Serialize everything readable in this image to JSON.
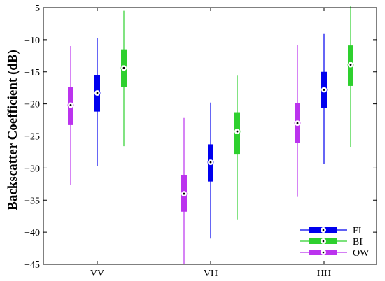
{
  "chart_data": {
    "type": "boxplot",
    "title": "",
    "xlabel": "",
    "ylabel": "Backscatter Coefficient (dB)",
    "ylim": [
      -45,
      -5
    ],
    "yticks": [
      -45,
      -40,
      -35,
      -30,
      -25,
      -20,
      -15,
      -10,
      -5
    ],
    "ytick_labels": [
      "−45",
      "−40",
      "−35",
      "−30",
      "−25",
      "−20",
      "−15",
      "−10",
      "−5"
    ],
    "categories": [
      "VV",
      "VH",
      "HH"
    ],
    "grid": false,
    "legend_position": "bottom-right",
    "series": [
      {
        "name": "FI",
        "color": "#0000ee",
        "boxes": [
          {
            "category": "VV",
            "whisker_low": -29.7,
            "q1": -21.2,
            "median": -18.3,
            "q3": -15.5,
            "whisker_high": -9.7
          },
          {
            "category": "VH",
            "whisker_low": -41.0,
            "q1": -32.1,
            "median": -29.1,
            "q3": -26.3,
            "whisker_high": -19.8
          },
          {
            "category": "HH",
            "whisker_low": -29.3,
            "q1": -20.6,
            "median": -17.8,
            "q3": -15.0,
            "whisker_high": -9.0
          }
        ]
      },
      {
        "name": "BI",
        "color": "#2ed02e",
        "boxes": [
          {
            "category": "VV",
            "whisker_low": -26.6,
            "q1": -17.4,
            "median": -14.4,
            "q3": -11.5,
            "whisker_high": -5.5
          },
          {
            "category": "VH",
            "whisker_low": -38.1,
            "q1": -27.9,
            "median": -24.3,
            "q3": -21.3,
            "whisker_high": -15.6
          },
          {
            "category": "HH",
            "whisker_low": -26.8,
            "q1": -17.2,
            "median": -13.9,
            "q3": -10.9,
            "whisker_high": -4.8
          }
        ]
      },
      {
        "name": "OW",
        "color": "#bb33ee",
        "boxes": [
          {
            "category": "VV",
            "whisker_low": -32.6,
            "q1": -23.3,
            "median": -20.2,
            "q3": -17.4,
            "whisker_high": -11.0
          },
          {
            "category": "VH",
            "whisker_low": -45.0,
            "q1": -36.8,
            "median": -34.0,
            "q3": -31.1,
            "whisker_high": -22.2
          },
          {
            "category": "HH",
            "whisker_low": -34.5,
            "q1": -26.1,
            "median": -23.0,
            "q3": -19.9,
            "whisker_high": -10.8
          }
        ]
      }
    ]
  }
}
